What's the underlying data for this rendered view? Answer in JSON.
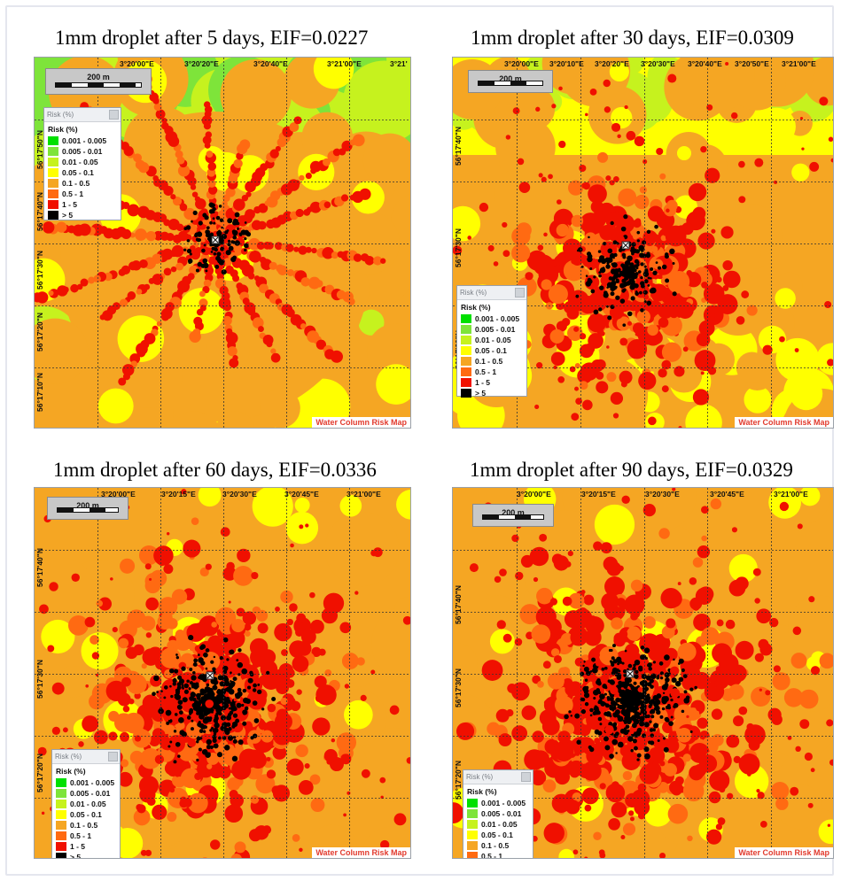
{
  "legend": {
    "header": "Risk (%)",
    "subheader": "Risk (%)",
    "classes": [
      {
        "label": "0.001 - 0.005",
        "color": "#00e000"
      },
      {
        "label": "0.005 - 0.01",
        "color": "#7ee43a"
      },
      {
        "label": "0.01 - 0.05",
        "color": "#c6f21e"
      },
      {
        "label": "0.05 - 0.1",
        "color": "#ffff00"
      },
      {
        "label": "0.1 - 0.5",
        "color": "#f5a623"
      },
      {
        "label": "0.5 - 1",
        "color": "#ff6a12"
      },
      {
        "label": "1 - 5",
        "color": "#f01000"
      },
      {
        "label": "> 5",
        "color": "#000000"
      }
    ]
  },
  "scale_label": "200 m",
  "footer": "Water Column Risk Map",
  "panels": [
    {
      "title": "1mm droplet after 5 days, EIF=0.0227",
      "lon_labels": [
        "3°20'00\"E",
        "3°20'20\"E",
        "3°20'40\"E",
        "3°21'00\"E",
        "3°21'"
      ],
      "lat_labels": [
        "56°17'50\"N",
        "56°17'40\"N",
        "56°17'30\"N",
        "56°17'20\"N",
        "56°17'10\"N"
      ]
    },
    {
      "title": "1mm droplet after 30 days, EIF=0.0309",
      "lon_labels": [
        "3°20'00\"E",
        "3°20'10\"E",
        "3°20'20\"E",
        "3°20'30\"E",
        "3°20'40\"E",
        "3°20'50\"E",
        "3°21'00\"E"
      ],
      "lat_labels": [
        "56°17'40\"N",
        "56°17'30\"N",
        "56°17'20\"N"
      ]
    },
    {
      "title": "1mm droplet after 60 days, EIF=0.0336",
      "lon_labels": [
        "3°20'00\"E",
        "3°20'15\"E",
        "3°20'30\"E",
        "3°20'45\"E",
        "3°21'00\"E"
      ],
      "lat_labels": [
        "56°17'40\"N",
        "56°17'30\"N",
        "56°17'20\"N"
      ]
    },
    {
      "title": "1mm droplet after 90 days, EIF=0.0329",
      "lon_labels": [
        "3°20'00\"E",
        "3°20'15\"E",
        "3°20'30\"E",
        "3°20'45\"E",
        "3°21'00\"E"
      ],
      "lat_labels": [
        "56°17'40\"N",
        "56°17'30\"N",
        "56°17'20\"N"
      ]
    }
  ]
}
